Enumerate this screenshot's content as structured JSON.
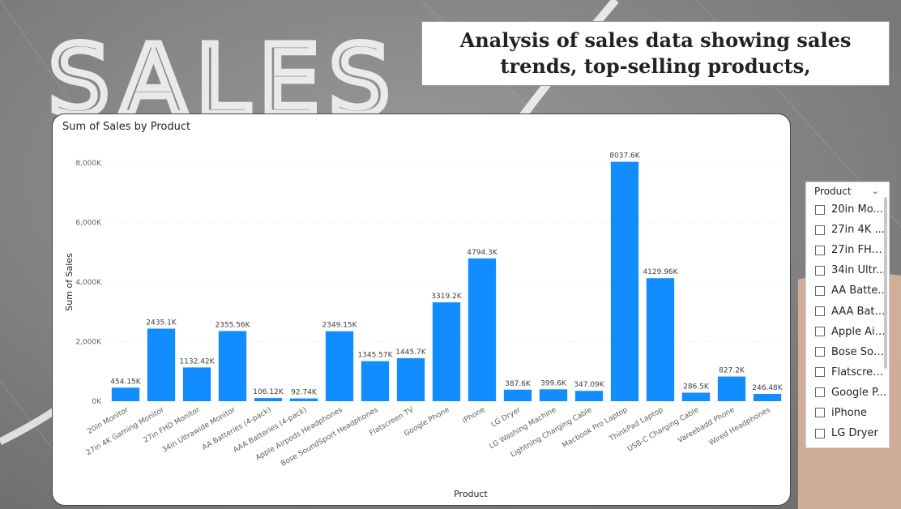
{
  "report": {
    "title": "Analysis of  sales data showing sales trends, top-selling products,"
  },
  "background": {
    "watermark_text": "SALES"
  },
  "chart_data": {
    "type": "bar",
    "title": "Sum of Sales by Product",
    "xlabel": "Product",
    "ylabel": "Sum of Sales",
    "ylim": [
      0,
      8000
    ],
    "yticks": [
      "0K",
      "2,000K",
      "4,000K",
      "6,000K",
      "8,000K"
    ],
    "ytick_values": [
      0,
      2000,
      4000,
      6000,
      8000
    ],
    "grid": true,
    "bar_color": "#118DFF",
    "categories": [
      "20in Monitor",
      "27in 4K Gaming Monitor",
      "27in FHD Monitor",
      "34in Ultrawide Monitor",
      "AA Batteries (4-pack)",
      "AAA Batteries (4-pack)",
      "Apple Airpods Headphones",
      "Bose SoundSport Headphones",
      "Flatscreen TV",
      "Google Phone",
      "iPhone",
      "LG Dryer",
      "LG Washing Machine",
      "Lightning Charging Cable",
      "Macbook Pro Laptop",
      "ThinkPad Laptop",
      "USB-C Charging Cable",
      "Vareebadd Phone",
      "Wired Headphones"
    ],
    "values": [
      454.15,
      2435.1,
      1132.42,
      2355.56,
      106.12,
      92.74,
      2349.15,
      1345.57,
      1445.7,
      3319.2,
      4794.3,
      387.6,
      399.6,
      347.09,
      8037.6,
      4129.96,
      286.5,
      827.2,
      246.48
    ],
    "data_labels": [
      "454.15K",
      "2435.1K",
      "1132.42K",
      "2355.56K",
      "106.12K",
      "92.74K",
      "2349.15K",
      "1345.57K",
      "1445.7K",
      "3319.2K",
      "4794.3K",
      "387.6K",
      "399.6K",
      "347.09K",
      "8037.6K",
      "4129.96K",
      "286.5K",
      "827.2K",
      "246.48K"
    ]
  },
  "slicer": {
    "title": "Product",
    "chevron_icon": "chevron-down-icon",
    "items": [
      {
        "label": "20in Mo..."
      },
      {
        "label": "27in 4K ..."
      },
      {
        "label": "27in FHD..."
      },
      {
        "label": "34in Ultr..."
      },
      {
        "label": "AA Batte..."
      },
      {
        "label": "AAA Batt..."
      },
      {
        "label": "Apple Air..."
      },
      {
        "label": "Bose Sou..."
      },
      {
        "label": "Flatscree..."
      },
      {
        "label": "Google P..."
      },
      {
        "label": "iPhone"
      },
      {
        "label": "LG Dryer"
      }
    ]
  }
}
